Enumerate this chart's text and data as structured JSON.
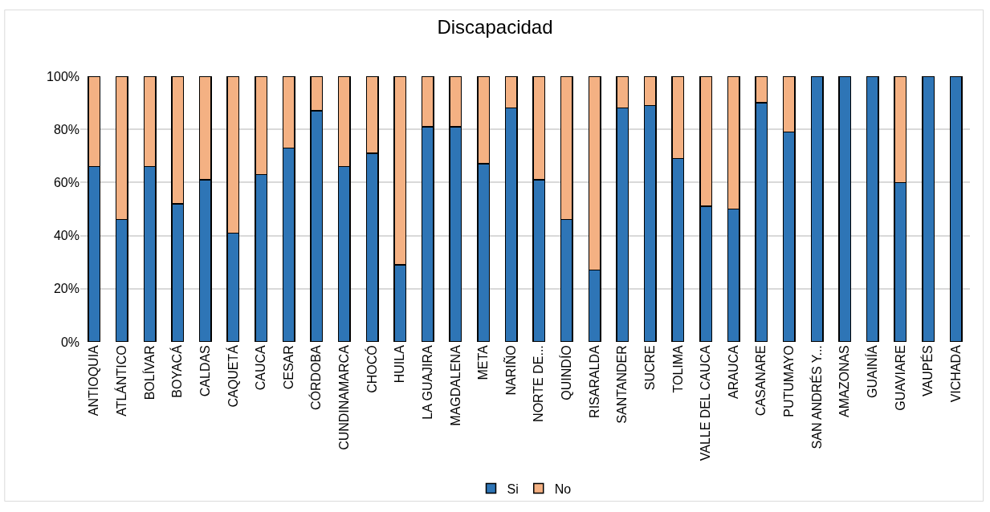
{
  "chart_data": {
    "type": "bar",
    "title": "Discapacidad",
    "stacked": true,
    "categories": [
      "ANTIOQUIA",
      "ATLÁNTICO",
      "BOLÍVAR",
      "BOYACÁ",
      "CALDAS",
      "CAQUETÁ",
      "CAUCA",
      "CESAR",
      "CÓRDOBA",
      "CUNDINAMARCA",
      "CHOCÓ",
      "HUILA",
      "LA GUAJIRA",
      "MAGDALENA",
      "META",
      "NARIÑO",
      "NORTE DE...",
      "QUINDÍO",
      "RISARALDA",
      "SANTANDER",
      "SUCRE",
      "TOLIMA",
      "VALLE DEL CAUCA",
      "ARAUCA",
      "CASANARE",
      "PUTUMAYO",
      "SAN ANDRÉS Y...",
      "AMAZONAS",
      "GUAINÍA",
      "GUAVIARE",
      "VAUPÉS",
      "VICHADA"
    ],
    "series": [
      {
        "name": "Si",
        "color": "#2e75b6",
        "values": [
          66,
          46,
          66,
          52,
          61,
          41,
          63,
          73,
          87,
          66,
          71,
          29,
          81,
          81,
          67,
          88,
          61,
          46,
          27,
          88,
          89,
          69,
          51,
          50,
          90,
          79,
          100,
          100,
          100,
          60,
          100,
          100
        ]
      },
      {
        "name": "No",
        "color": "#f4b183",
        "values": [
          34,
          54,
          34,
          48,
          39,
          59,
          37,
          27,
          13,
          34,
          29,
          71,
          19,
          19,
          33,
          12,
          39,
          54,
          73,
          12,
          11,
          31,
          49,
          50,
          10,
          21,
          0,
          0,
          0,
          40,
          0,
          0
        ]
      }
    ],
    "ylim": [
      0,
      100
    ],
    "yticks": [
      {
        "value": 0,
        "label": "0%"
      },
      {
        "value": 20,
        "label": "20%"
      },
      {
        "value": 40,
        "label": "40%"
      },
      {
        "value": 60,
        "label": "60%"
      },
      {
        "value": 80,
        "label": "80%"
      },
      {
        "value": 100,
        "label": "100%"
      }
    ],
    "grid": "y",
    "legend": "bottom"
  }
}
